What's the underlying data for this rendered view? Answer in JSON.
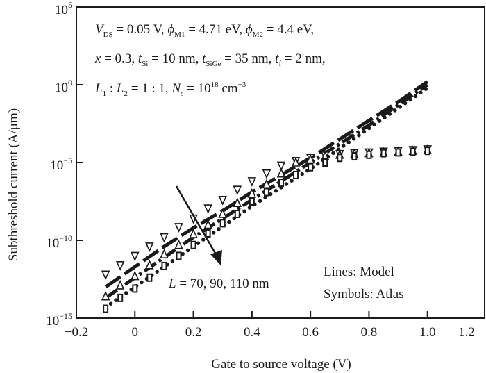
{
  "chart_data": {
    "type": "scatter",
    "xlabel": "Gate to source voltage (V)",
    "ylabel": "Subthreshold current (A/μm)",
    "xlim": [
      -0.2,
      1.2
    ],
    "ylim_log10": [
      -15,
      5
    ],
    "yscale": "log",
    "grid": false,
    "x_ticks": [
      "−0.2",
      "0",
      "0.2",
      "0.4",
      "0.6",
      "0.8",
      "1.0",
      "1.2"
    ],
    "y_ticks": [
      {
        "base": "10",
        "exp": "5"
      },
      {
        "base": "10",
        "exp": "0"
      },
      {
        "base": "10",
        "exp": "−5"
      },
      {
        "base": "10",
        "exp": "−10"
      },
      {
        "base": "10",
        "exp": "−15"
      }
    ],
    "annotations": {
      "line1": [
        [
          "i",
          "V"
        ],
        [
          "sub",
          "DS"
        ],
        [
          "t",
          " = 0.05 V,  "
        ],
        [
          "i",
          "ϕ"
        ],
        [
          "sub",
          "M1"
        ],
        [
          "t",
          " = 4.71 eV,  "
        ],
        [
          "i",
          "ϕ"
        ],
        [
          "sub",
          "M2"
        ],
        [
          "t",
          " = 4.4 eV,"
        ]
      ],
      "line2": [
        [
          "i",
          "x"
        ],
        [
          "t",
          " = 0.3, "
        ],
        [
          "i",
          "t"
        ],
        [
          "sub",
          "Si"
        ],
        [
          "t",
          " = 10 nm, "
        ],
        [
          "i",
          "t"
        ],
        [
          "sub",
          "SiGe"
        ],
        [
          "t",
          " = 35 nm, "
        ],
        [
          "i",
          "t"
        ],
        [
          "sub",
          "f"
        ],
        [
          "t",
          " = 2 nm,"
        ]
      ],
      "line3": [
        [
          "i",
          "L"
        ],
        [
          "sub",
          "1"
        ],
        [
          "t",
          " : "
        ],
        [
          "i",
          "L"
        ],
        [
          "sub",
          "2"
        ],
        [
          "t",
          " = 1 : 1, "
        ],
        [
          "i",
          "N"
        ],
        [
          "sub",
          "s"
        ],
        [
          "t",
          " = 10"
        ],
        [
          "sup",
          "18"
        ],
        [
          "t",
          " cm"
        ],
        [
          "sup",
          "−3"
        ]
      ],
      "arrow_label": [
        [
          "i",
          "L"
        ],
        [
          "t",
          " = 70, 90, 110 nm"
        ]
      ],
      "legend_lines": "Lines: Model",
      "legend_symbols": "Symbols: Atlas"
    },
    "model_x": [
      -0.1,
      0,
      0.1,
      0.2,
      0.3,
      0.4,
      0.5,
      0.6,
      0.7,
      0.8,
      0.9,
      1.0
    ],
    "model_series_log10": [
      {
        "style": "dash",
        "values": [
          -13.0,
          -11.7,
          -10.4,
          -9.2,
          -8.1,
          -6.9,
          -5.8,
          -4.7,
          -3.5,
          -2.3,
          -1.1,
          0.2
        ]
      },
      {
        "style": "dash-dot",
        "values": [
          -13.7,
          -12.4,
          -11.1,
          -9.8,
          -8.6,
          -7.4,
          -6.2,
          -5.0,
          -3.8,
          -2.6,
          -1.3,
          0.0
        ]
      },
      {
        "style": "dot",
        "values": [
          -14.3,
          -13.0,
          -11.7,
          -10.4,
          -9.1,
          -7.8,
          -6.6,
          -5.4,
          -4.1,
          -2.8,
          -1.5,
          -0.2
        ]
      }
    ],
    "atlas_x": [
      -0.1,
      -0.05,
      0,
      0.05,
      0.1,
      0.15,
      0.2,
      0.25,
      0.3,
      0.35,
      0.4,
      0.45,
      0.5,
      0.55,
      0.6,
      0.65,
      0.7,
      0.75,
      0.8,
      0.85,
      0.9,
      0.95,
      1.0
    ],
    "atlas_series_log10": [
      {
        "marker": "triangle-down",
        "values": [
          -12.2,
          -11.6,
          -11.0,
          -10.4,
          -9.8,
          -9.15,
          -8.6,
          -7.95,
          -7.4,
          -6.75,
          -6.2,
          -5.7,
          -5.2,
          -4.9,
          -4.7,
          -4.55,
          -4.45,
          -4.4,
          -4.35,
          -4.3,
          -4.25,
          -4.2,
          -4.15
        ]
      },
      {
        "marker": "triangle-up",
        "values": [
          -13.6,
          -12.9,
          -12.3,
          -11.6,
          -10.9,
          -10.3,
          -9.6,
          -9.0,
          -8.3,
          -7.6,
          -7.0,
          -6.4,
          -5.7,
          -5.0,
          -4.8,
          -4.6,
          -4.5,
          -4.45,
          -4.4,
          -4.35,
          -4.3,
          -4.25,
          -4.2
        ]
      },
      {
        "marker": "square",
        "values": [
          -14.4,
          -13.7,
          -13.1,
          -12.4,
          -11.65,
          -11.0,
          -10.3,
          -9.55,
          -8.9,
          -8.3,
          -7.5,
          -6.9,
          -6.3,
          -5.8,
          -5.3,
          -5.0,
          -4.7,
          -4.6,
          -4.5,
          -4.4,
          -4.35,
          -4.3,
          -4.25
        ]
      }
    ],
    "colors": {
      "ink": "#1a1a1a",
      "background": "#ffffff"
    }
  }
}
